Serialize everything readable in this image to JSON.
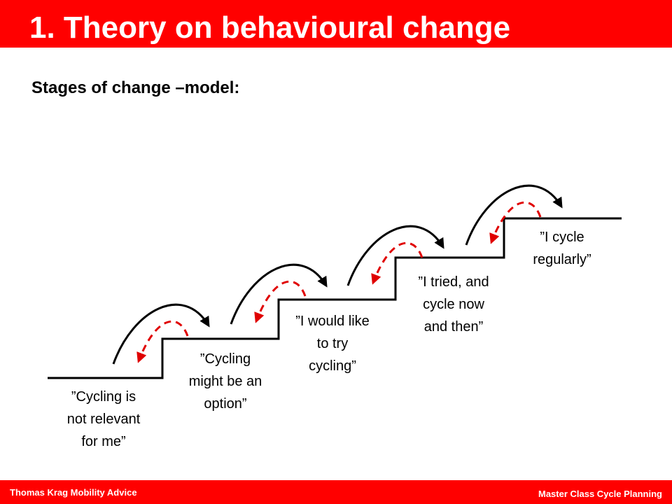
{
  "header": {
    "title": "1. Theory on behavioural change"
  },
  "subtitle": "Stages of change –model:",
  "stages": [
    {
      "lines": [
        "”Cycling is",
        "not relevant",
        "for me”"
      ]
    },
    {
      "lines": [
        "”Cycling",
        "might be an",
        "option”"
      ]
    },
    {
      "lines": [
        "”I would like",
        "to try",
        "cycling”"
      ]
    },
    {
      "lines": [
        "”I tried, and",
        "cycle now",
        "and then”"
      ]
    },
    {
      "lines": [
        "”I cycle",
        "regularly”"
      ]
    }
  ],
  "footer": {
    "left": "Thomas Krag Mobility Advice",
    "right": "Master Class Cycle Planning"
  }
}
